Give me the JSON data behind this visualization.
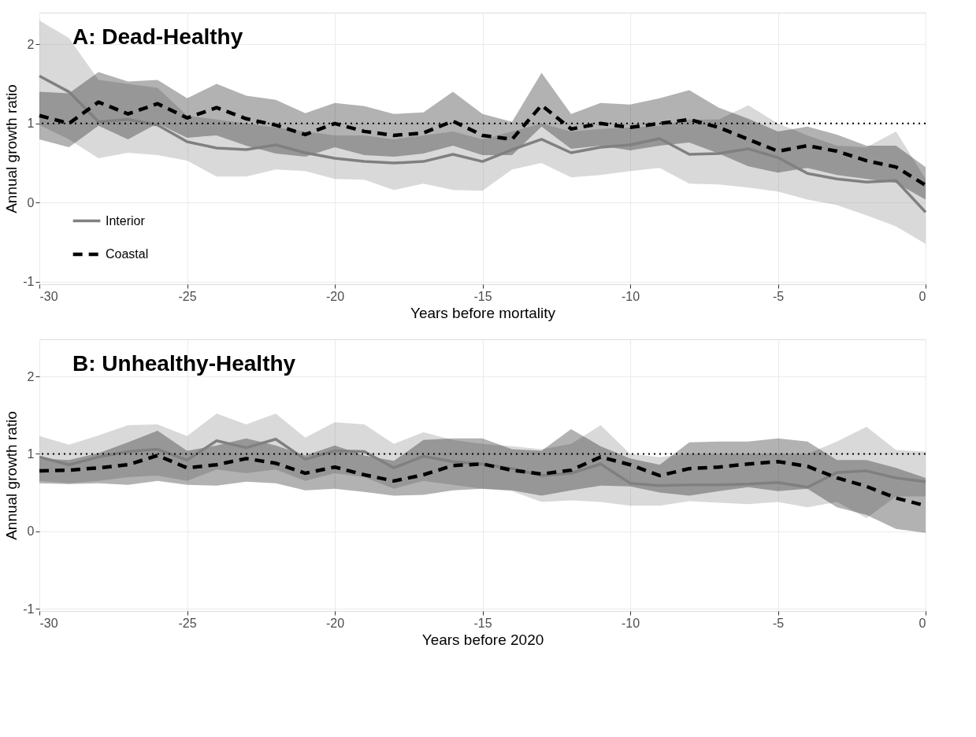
{
  "chart_data": [
    {
      "type": "line",
      "title": "A: Dead-Healthy",
      "xlabel": "Years before mortality",
      "ylabel": "Annual growth ratio",
      "x": [
        -30,
        -29,
        -28,
        -27,
        -26,
        -25,
        -24,
        -23,
        -22,
        -21,
        -20,
        -19,
        -18,
        -17,
        -16,
        -15,
        -14,
        -13,
        -12,
        -11,
        -10,
        -9,
        -8,
        -7,
        -6,
        -5,
        -4,
        -3,
        -2,
        -1,
        0
      ],
      "series": [
        {
          "name": "Interior",
          "color": "#808080",
          "line_style": "solid",
          "values": [
            1.6,
            1.4,
            1.02,
            1.05,
            0.98,
            0.77,
            0.69,
            0.67,
            0.73,
            0.63,
            0.56,
            0.52,
            0.5,
            0.52,
            0.61,
            0.52,
            0.67,
            0.8,
            0.63,
            0.7,
            0.73,
            0.81,
            0.61,
            0.62,
            0.68,
            0.57,
            0.37,
            0.3,
            0.26,
            0.28,
            -0.12
          ],
          "lower": [
            0.98,
            0.8,
            0.56,
            0.63,
            0.6,
            0.53,
            0.33,
            0.33,
            0.42,
            0.4,
            0.3,
            0.29,
            0.16,
            0.24,
            0.16,
            0.15,
            0.42,
            0.5,
            0.32,
            0.35,
            0.4,
            0.44,
            0.24,
            0.23,
            0.19,
            0.14,
            0.04,
            -0.03,
            -0.16,
            -0.3,
            -0.52
          ],
          "upper": [
            2.3,
            2.08,
            1.55,
            1.5,
            1.45,
            1.1,
            1.05,
            1.0,
            0.95,
            0.9,
            0.85,
            0.85,
            0.8,
            0.85,
            0.9,
            0.8,
            0.9,
            1.0,
            0.9,
            0.93,
            0.95,
            0.97,
            1.05,
            1.05,
            1.23,
            1.0,
            0.85,
            0.72,
            0.7,
            0.9,
            0.3
          ]
        },
        {
          "name": "Coastal",
          "color": "#000000",
          "line_style": "dashed",
          "values": [
            1.1,
            1.0,
            1.27,
            1.12,
            1.25,
            1.07,
            1.2,
            1.06,
            0.98,
            0.86,
            1.0,
            0.9,
            0.85,
            0.88,
            1.03,
            0.85,
            0.8,
            1.23,
            0.93,
            1.0,
            0.95,
            1.0,
            1.05,
            0.95,
            0.8,
            0.65,
            0.72,
            0.65,
            0.53,
            0.45,
            0.22
          ],
          "lower": [
            0.8,
            0.7,
            0.97,
            0.8,
            1.0,
            0.82,
            0.85,
            0.72,
            0.62,
            0.58,
            0.7,
            0.6,
            0.58,
            0.62,
            0.72,
            0.6,
            0.6,
            0.96,
            0.68,
            0.72,
            0.66,
            0.72,
            0.76,
            0.62,
            0.46,
            0.38,
            0.44,
            0.35,
            0.3,
            0.25,
            0.04
          ],
          "upper": [
            1.4,
            1.38,
            1.65,
            1.53,
            1.55,
            1.32,
            1.5,
            1.35,
            1.3,
            1.13,
            1.26,
            1.22,
            1.12,
            1.14,
            1.4,
            1.12,
            1.02,
            1.64,
            1.12,
            1.26,
            1.24,
            1.32,
            1.42,
            1.2,
            1.06,
            0.9,
            0.96,
            0.86,
            0.72,
            0.72,
            0.45
          ]
        }
      ],
      "xlim": [
        -30,
        0
      ],
      "ylim": [
        -1.03,
        2.4
      ],
      "xticks": [
        -30,
        -25,
        -20,
        -15,
        -10,
        -5,
        0
      ],
      "yticks": [
        -1,
        0,
        1,
        2
      ],
      "grid": true,
      "legend": "bottom left",
      "ref_lines": [
        {
          "axis": "y",
          "value": 1,
          "color": "#000000",
          "line_style": "dotted"
        }
      ]
    },
    {
      "type": "line",
      "title": "B: Unhealthy-Healthy",
      "xlabel": "Years before 2020",
      "ylabel": "Annual growth ratio",
      "x": [
        -30,
        -29,
        -28,
        -27,
        -26,
        -25,
        -24,
        -23,
        -22,
        -21,
        -20,
        -19,
        -18,
        -17,
        -16,
        -15,
        -14,
        -13,
        -12,
        -11,
        -10,
        -9,
        -8,
        -7,
        -6,
        -5,
        -4,
        -3,
        -2,
        -1,
        0
      ],
      "series": [
        {
          "color": "#808080",
          "line_style": "solid",
          "values": [
            0.96,
            0.86,
            0.96,
            1.03,
            1.06,
            0.92,
            1.17,
            1.08,
            1.19,
            0.93,
            1.04,
            1.03,
            0.82,
            0.97,
            0.9,
            0.87,
            0.81,
            0.72,
            0.75,
            0.87,
            0.62,
            0.59,
            0.6,
            0.6,
            0.61,
            0.63,
            0.57,
            0.76,
            0.78,
            0.69,
            0.64
          ],
          "lower": [
            0.65,
            0.62,
            0.65,
            0.7,
            0.72,
            0.65,
            0.8,
            0.75,
            0.8,
            0.65,
            0.75,
            0.7,
            0.55,
            0.65,
            0.6,
            0.55,
            0.52,
            0.38,
            0.4,
            0.38,
            0.33,
            0.33,
            0.39,
            0.37,
            0.35,
            0.38,
            0.31,
            0.38,
            0.17,
            0.45,
            0.45
          ],
          "upper": [
            1.23,
            1.12,
            1.24,
            1.37,
            1.38,
            1.23,
            1.52,
            1.38,
            1.52,
            1.21,
            1.41,
            1.38,
            1.13,
            1.28,
            1.18,
            1.13,
            1.1,
            1.06,
            1.13,
            1.37,
            1.0,
            0.96,
            1.0,
            1.0,
            1.0,
            1.0,
            1.0,
            1.16,
            1.35,
            1.05,
            1.03
          ]
        },
        {
          "color": "#000000",
          "line_style": "dashed",
          "values": [
            0.78,
            0.79,
            0.82,
            0.86,
            0.98,
            0.82,
            0.86,
            0.94,
            0.88,
            0.75,
            0.83,
            0.73,
            0.65,
            0.73,
            0.85,
            0.87,
            0.79,
            0.74,
            0.79,
            0.96,
            0.86,
            0.72,
            0.81,
            0.83,
            0.87,
            0.9,
            0.84,
            0.69,
            0.58,
            0.43,
            0.33
          ],
          "lower": [
            0.62,
            0.61,
            0.62,
            0.6,
            0.65,
            0.6,
            0.59,
            0.64,
            0.62,
            0.53,
            0.55,
            0.51,
            0.46,
            0.47,
            0.53,
            0.55,
            0.53,
            0.46,
            0.53,
            0.59,
            0.58,
            0.5,
            0.46,
            0.52,
            0.57,
            0.52,
            0.55,
            0.31,
            0.21,
            0.03,
            -0.02
          ],
          "upper": [
            0.94,
            0.92,
            1.01,
            1.15,
            1.3,
            1.04,
            1.11,
            1.2,
            1.11,
            0.98,
            1.11,
            0.98,
            0.91,
            1.18,
            1.2,
            1.2,
            1.06,
            1.04,
            1.32,
            1.1,
            0.94,
            0.86,
            1.15,
            1.16,
            1.16,
            1.2,
            1.16,
            0.92,
            0.92,
            0.82,
            0.69
          ]
        }
      ],
      "xlim": [
        -30,
        0
      ],
      "ylim": [
        -1.03,
        2.48
      ],
      "xticks": [
        -30,
        -25,
        -20,
        -15,
        -10,
        -5,
        0
      ],
      "yticks": [
        -1,
        0,
        1,
        2
      ],
      "grid": true,
      "legend": false,
      "ref_lines": [
        {
          "axis": "y",
          "value": 1,
          "color": "#000000",
          "line_style": "dotted"
        }
      ]
    }
  ]
}
